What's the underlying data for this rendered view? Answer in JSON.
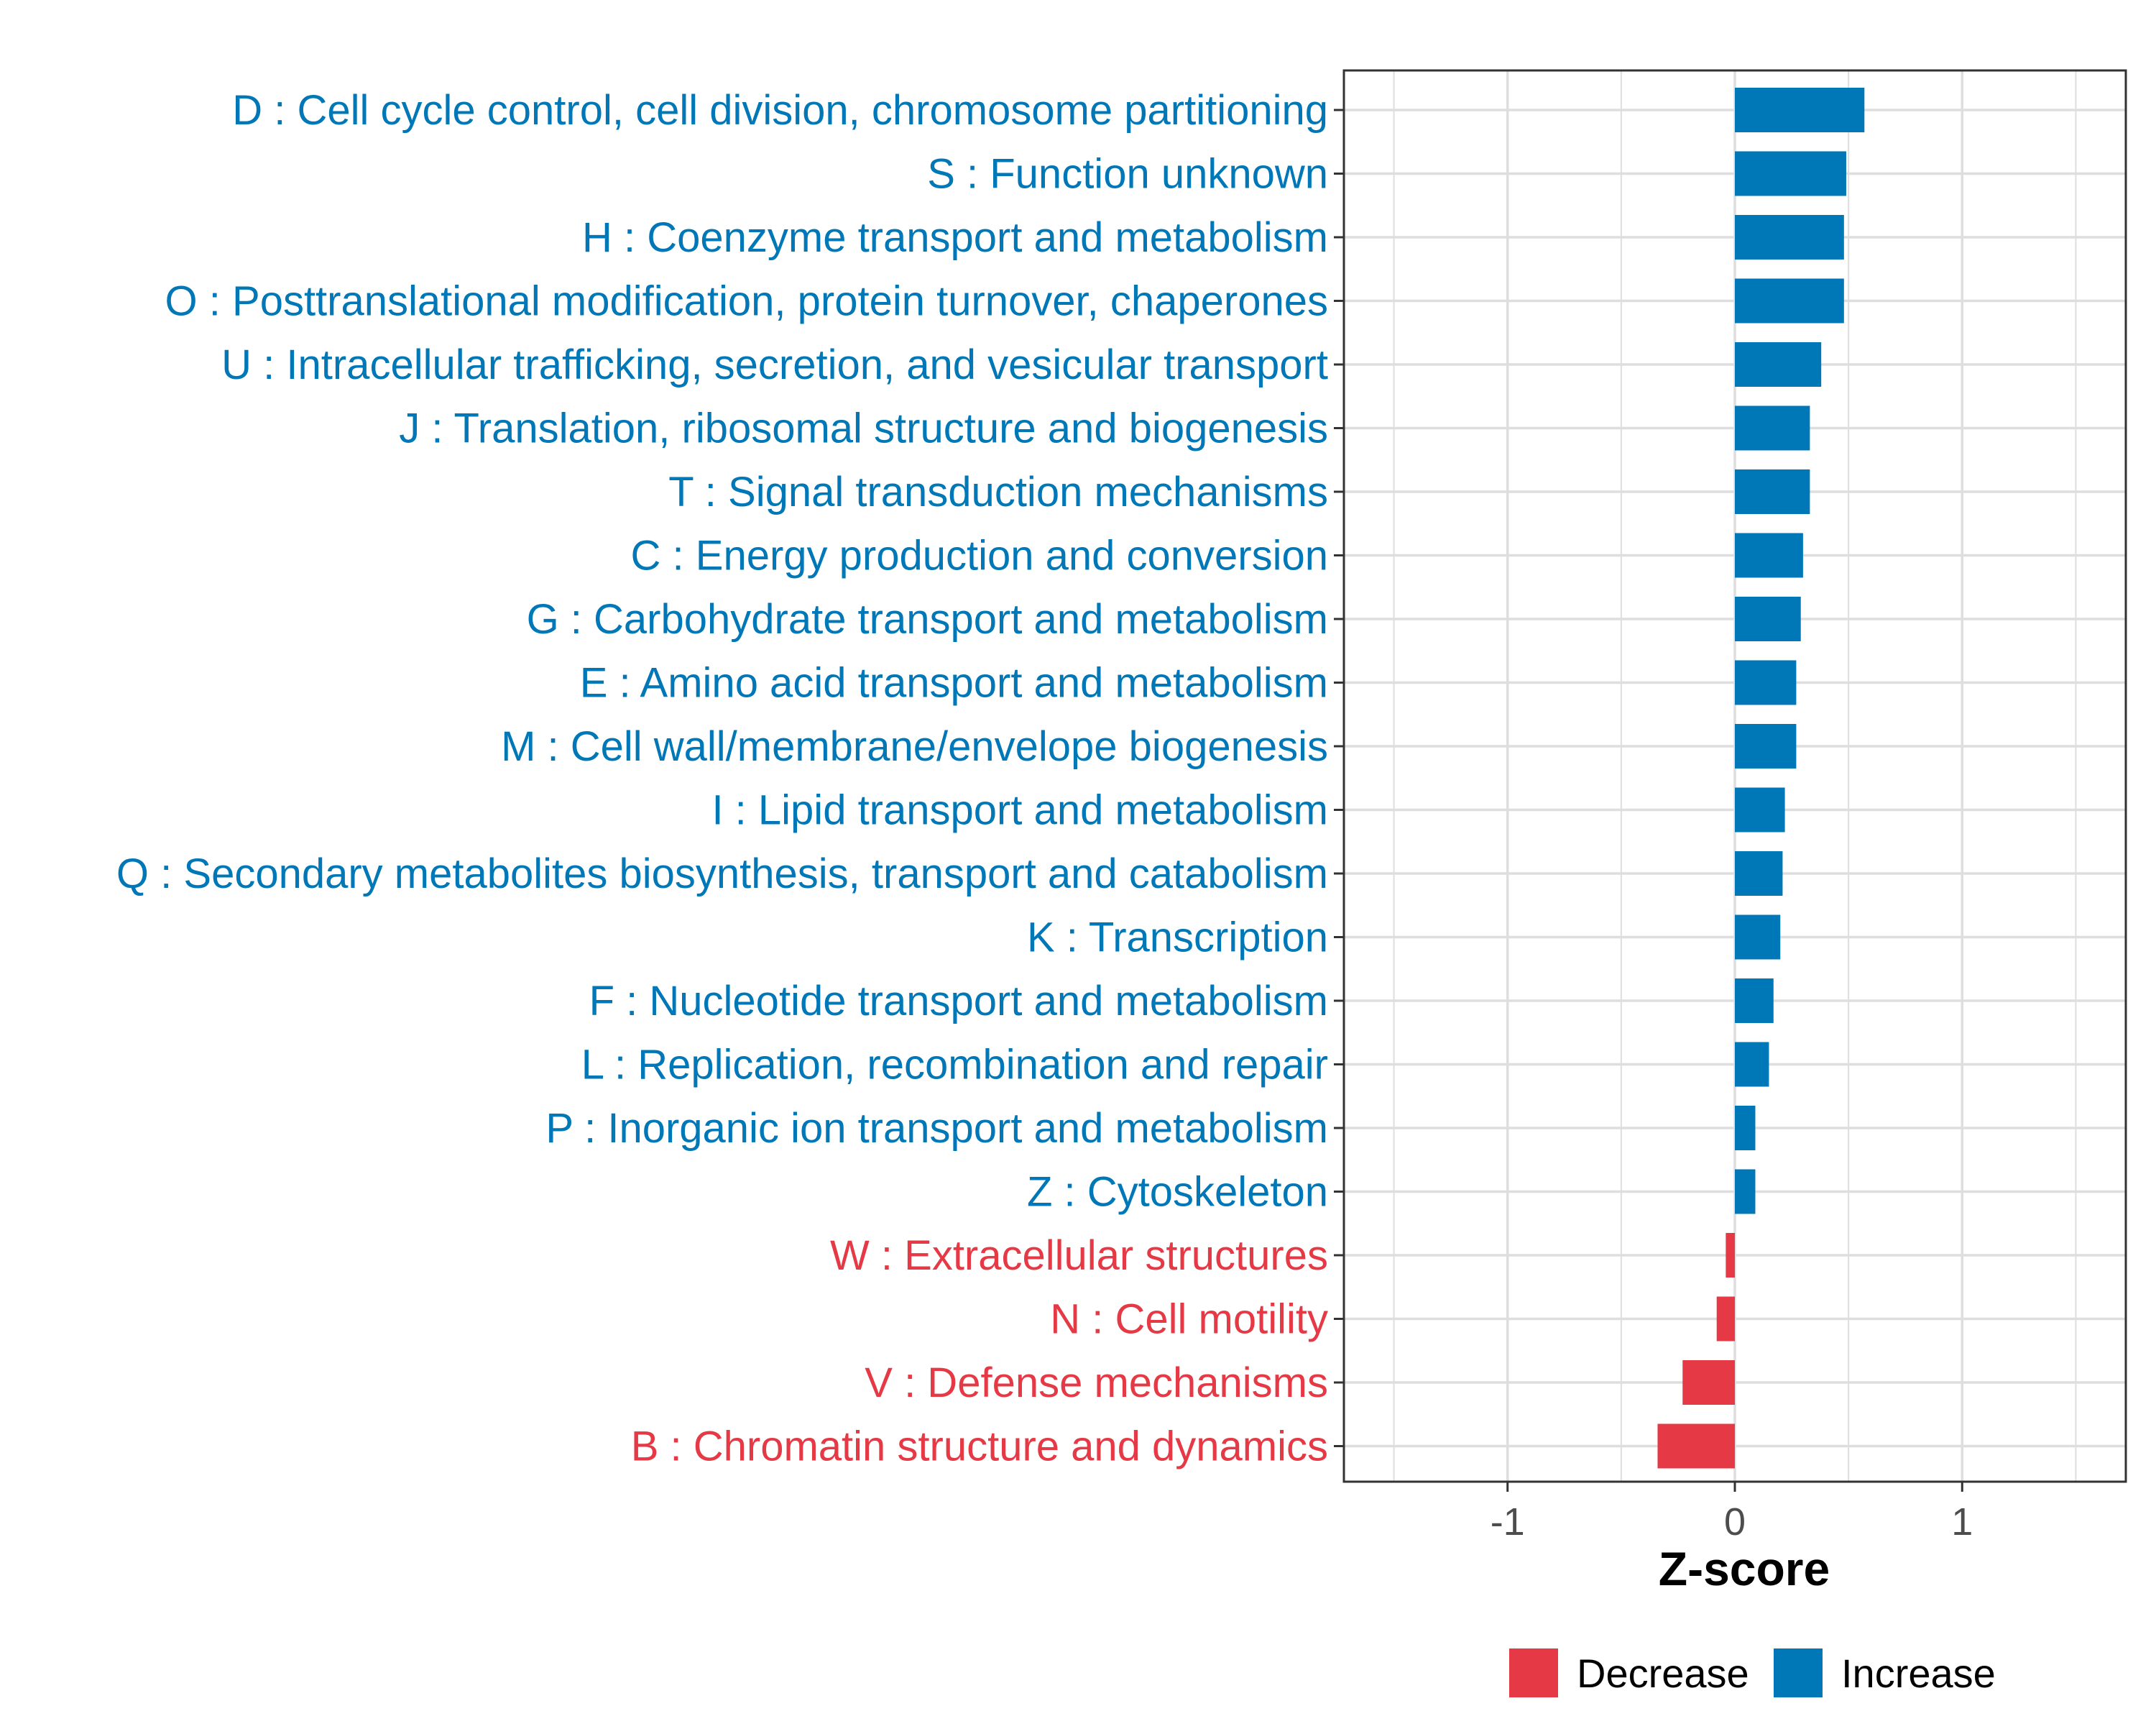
{
  "chart_data": {
    "type": "bar",
    "orientation": "horizontal",
    "title": "",
    "xlabel": "Z-score",
    "ylabel": "",
    "xlim": [
      -1.72,
      1.72
    ],
    "xticks": [
      -1,
      0,
      1
    ],
    "xtick_labels": [
      "-1",
      "0",
      "1"
    ],
    "grid": true,
    "legend": {
      "position": "bottom",
      "entries": [
        {
          "name": "Decrease",
          "color": "#E63946"
        },
        {
          "name": "Increase",
          "color": "#0077B6"
        }
      ]
    },
    "colors": {
      "Decrease": "#E63946",
      "Increase": "#0077B6"
    },
    "categories": [
      "D : Cell cycle control, cell division, chromosome partitioning",
      "S : Function unknown",
      "H : Coenzyme transport and metabolism",
      "O : Posttranslational modification, protein turnover, chaperones",
      "U : Intracellular trafficking, secretion, and vesicular transport",
      "J : Translation, ribosomal structure and biogenesis",
      "T : Signal transduction mechanisms",
      "C : Energy production and conversion",
      "G : Carbohydrate transport and metabolism",
      "E : Amino acid transport and metabolism",
      "M : Cell wall/membrane/envelope biogenesis",
      "I : Lipid transport and metabolism",
      "Q : Secondary metabolites biosynthesis, transport and catabolism",
      "K : Transcription",
      "F : Nucleotide transport and metabolism",
      "L : Replication, recombination and repair",
      "P : Inorganic ion transport and metabolism",
      "Z : Cytoskeleton",
      "W : Extracellular structures",
      "N : Cell motility",
      "V : Defense mechanisms",
      "B : Chromatin structure and dynamics"
    ],
    "values": [
      0.57,
      0.49,
      0.48,
      0.48,
      0.38,
      0.33,
      0.33,
      0.3,
      0.29,
      0.27,
      0.27,
      0.22,
      0.21,
      0.2,
      0.17,
      0.15,
      0.09,
      0.09,
      -0.04,
      -0.08,
      -0.23,
      -0.34
    ],
    "groups": [
      "Increase",
      "Increase",
      "Increase",
      "Increase",
      "Increase",
      "Increase",
      "Increase",
      "Increase",
      "Increase",
      "Increase",
      "Increase",
      "Increase",
      "Increase",
      "Increase",
      "Increase",
      "Increase",
      "Increase",
      "Increase",
      "Decrease",
      "Decrease",
      "Decrease",
      "Decrease"
    ]
  }
}
